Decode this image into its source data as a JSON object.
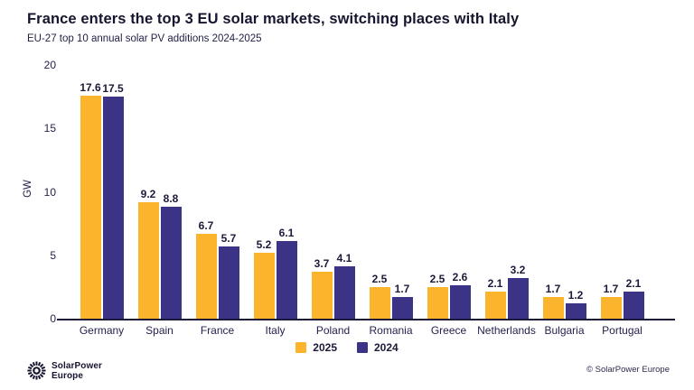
{
  "header": {
    "title": "France enters the top 3 EU solar markets, switching places with Italy",
    "subtitle": "EU-27 top 10 annual solar PV additions 2024-2025"
  },
  "chart_data": {
    "type": "bar",
    "title": "France enters the top 3 EU solar markets, switching places with Italy",
    "subtitle": "EU-27 top 10 annual solar PV additions 2024-2025",
    "categories": [
      "Germany",
      "Spain",
      "France",
      "Italy",
      "Poland",
      "Romania",
      "Greece",
      "Netherlands",
      "Bulgaria",
      "Portugal"
    ],
    "series": [
      {
        "name": "2025",
        "color": "#FBB42C",
        "values": [
          17.6,
          9.2,
          6.7,
          5.2,
          3.7,
          2.5,
          2.5,
          2.1,
          1.7,
          1.7
        ]
      },
      {
        "name": "2024",
        "color": "#3B3486",
        "values": [
          17.5,
          8.8,
          5.7,
          6.1,
          4.1,
          1.7,
          2.6,
          3.2,
          1.2,
          2.1
        ]
      }
    ],
    "xlabel": "",
    "ylabel": "GW",
    "ylim": [
      0,
      20
    ],
    "yticks": [
      0,
      5,
      10,
      15,
      20
    ],
    "grid": false,
    "value_labels": true,
    "legend_position": "bottom"
  },
  "colors": {
    "series_2025": "#FBB42C",
    "series_2024": "#3B3486",
    "text_navy": "#1b1a38",
    "axis": "#1b1a38",
    "background": "#ffffff"
  },
  "footer": {
    "logo_line1": "SolarPower",
    "logo_line2": "Europe",
    "copyright": "© SolarPower Europe"
  }
}
